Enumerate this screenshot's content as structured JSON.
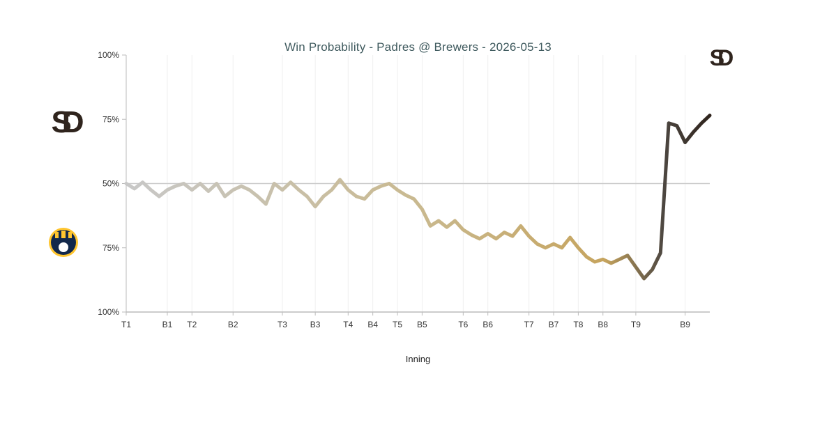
{
  "chart_data": {
    "type": "line",
    "title": "Win Probability - Padres @ Brewers - 2026-05-13",
    "xlabel": "Inning",
    "ylabel": "",
    "y_tick_labels": [
      "100%",
      "75%",
      "50%",
      "75%",
      "100%"
    ],
    "ylim": [
      -100,
      100
    ],
    "x_tick_labels": [
      "T1",
      "B1",
      "T2",
      "B2",
      "T3",
      "B3",
      "T4",
      "B4",
      "T5",
      "B5",
      "T6",
      "B6",
      "T7",
      "B7",
      "T8",
      "B8",
      "T9",
      "B9"
    ],
    "x_tick_positions": [
      0,
      5,
      8,
      13,
      19,
      23,
      27,
      30,
      33,
      36,
      41,
      44,
      49,
      52,
      55,
      58,
      62,
      68
    ],
    "xlim": [
      0,
      71
    ],
    "series": [
      {
        "x": [
          0,
          1,
          2,
          3,
          4,
          5,
          6,
          7,
          8,
          9,
          10,
          11,
          12,
          13,
          14,
          15,
          16,
          17,
          18,
          19,
          20,
          21,
          22,
          23,
          24,
          25,
          26,
          27,
          28,
          29,
          30,
          31,
          32,
          33,
          34,
          35,
          36,
          37,
          38,
          39,
          40,
          41,
          42,
          43,
          44,
          45,
          46,
          47,
          48,
          49,
          50,
          51,
          52,
          53,
          54,
          55,
          56,
          57,
          58,
          59,
          60,
          61,
          62,
          63,
          64,
          65,
          66,
          67,
          68,
          69,
          70,
          71
        ],
        "values": [
          0,
          -4,
          1,
          -5,
          -10,
          -5,
          -2,
          0,
          -5,
          0,
          -6,
          0,
          -10,
          -5,
          -2,
          -5,
          -10,
          -16,
          0,
          -5,
          1,
          -5,
          -10,
          -18,
          -10,
          -5,
          3,
          -5,
          -10,
          -12,
          -5,
          -2,
          0,
          -5,
          -9,
          -12,
          -20,
          -33,
          -29,
          -34,
          -29,
          -36,
          -40,
          -43,
          -39,
          -43,
          -38,
          -41,
          -33,
          -41,
          -47,
          -50,
          -47,
          -50,
          -42,
          -50,
          -57,
          -61,
          -59,
          -62,
          -59,
          -56,
          -65,
          -74,
          -67,
          -54,
          47,
          45,
          32,
          40,
          47,
          53
        ],
        "color_stops": [
          "#c8c8c8",
          "#c9b98f",
          "#c6a45e",
          "#4d4741",
          "#2f241d"
        ]
      }
    ],
    "legend": "team logos on left axis",
    "grid": true,
    "teams": [
      {
        "name": "Padres",
        "logo_text": "SD",
        "color": "#2f241d",
        "side": "top"
      },
      {
        "name": "Brewers",
        "color": "#12284b",
        "accent": "#ffc52f",
        "side": "bottom"
      }
    ]
  }
}
